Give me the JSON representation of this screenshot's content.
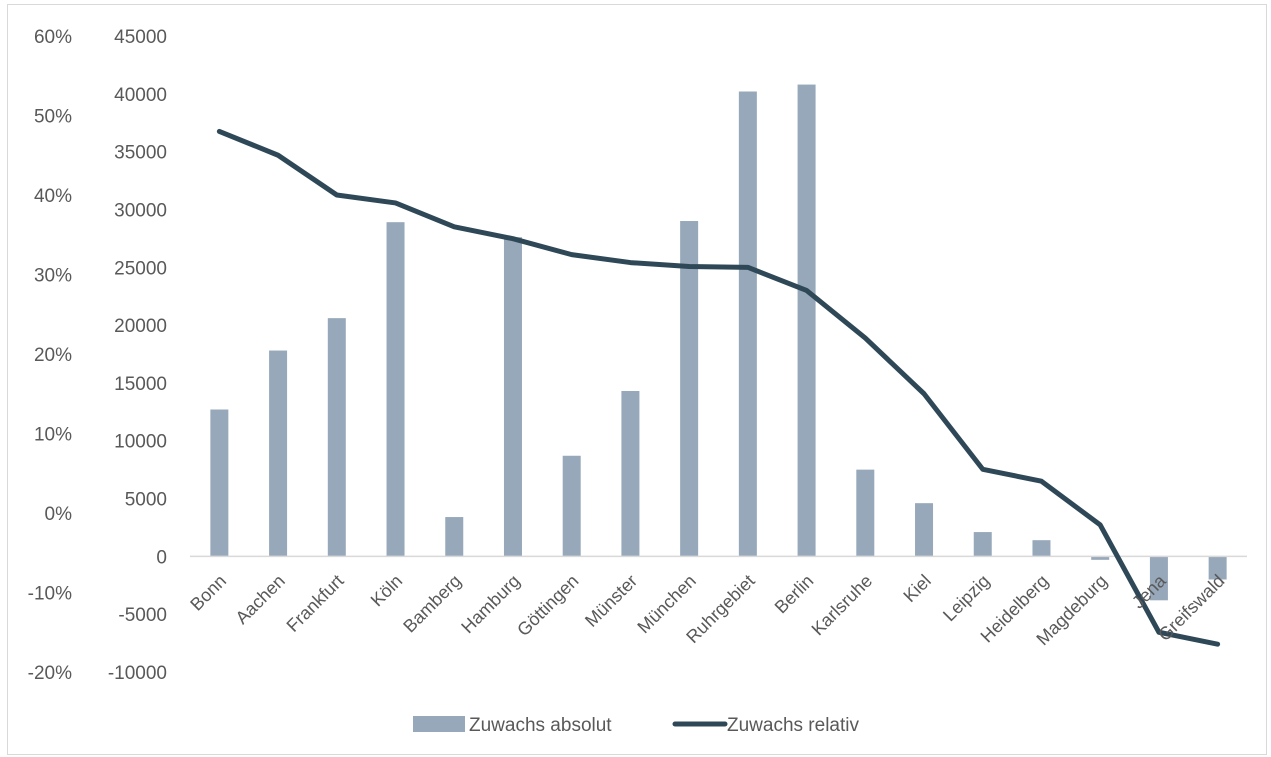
{
  "chart_data": {
    "type": "bar",
    "categories": [
      "Bonn",
      "Aachen",
      "Frankfurt",
      "Köln",
      "Bamberg",
      "Hamburg",
      "Göttingen",
      "Münster",
      "München",
      "Ruhrgebiet",
      "Berlin",
      "Karlsruhe",
      "Kiel",
      "Leipzig",
      "Heidelberg",
      "Magdeburg",
      "Jena",
      "Greifswald"
    ],
    "series": [
      {
        "name": "Zuwachs absolut",
        "kind": "bar",
        "axis": "right",
        "color": "#97a8ba",
        "values": [
          12700,
          17800,
          20600,
          28900,
          3400,
          27600,
          8700,
          14300,
          29000,
          40200,
          40800,
          7500,
          4600,
          2100,
          1400,
          -300,
          -3800,
          -2000
        ]
      },
      {
        "name": "Zuwachs relativ",
        "kind": "line",
        "axis": "left",
        "color": "#2f4858",
        "values": [
          48,
          45,
          40,
          39,
          36,
          34.5,
          32.5,
          31.5,
          31,
          30.9,
          28,
          22,
          15,
          5.5,
          4,
          -1.5,
          -15,
          -16.5
        ]
      }
    ],
    "y_left": {
      "ticks": [
        "60%",
        "50%",
        "40%",
        "30%",
        "20%",
        "10%",
        "0%",
        "-10%",
        "-20%"
      ],
      "range": [
        -20,
        60
      ]
    },
    "y_right": {
      "ticks": [
        "45000",
        "40000",
        "35000",
        "30000",
        "25000",
        "20000",
        "15000",
        "10000",
        "5000",
        "0",
        "-5000",
        "-10000"
      ],
      "range": [
        -10000,
        45000
      ]
    },
    "xlabel": "",
    "ylabel": "",
    "legend": "bottom"
  }
}
